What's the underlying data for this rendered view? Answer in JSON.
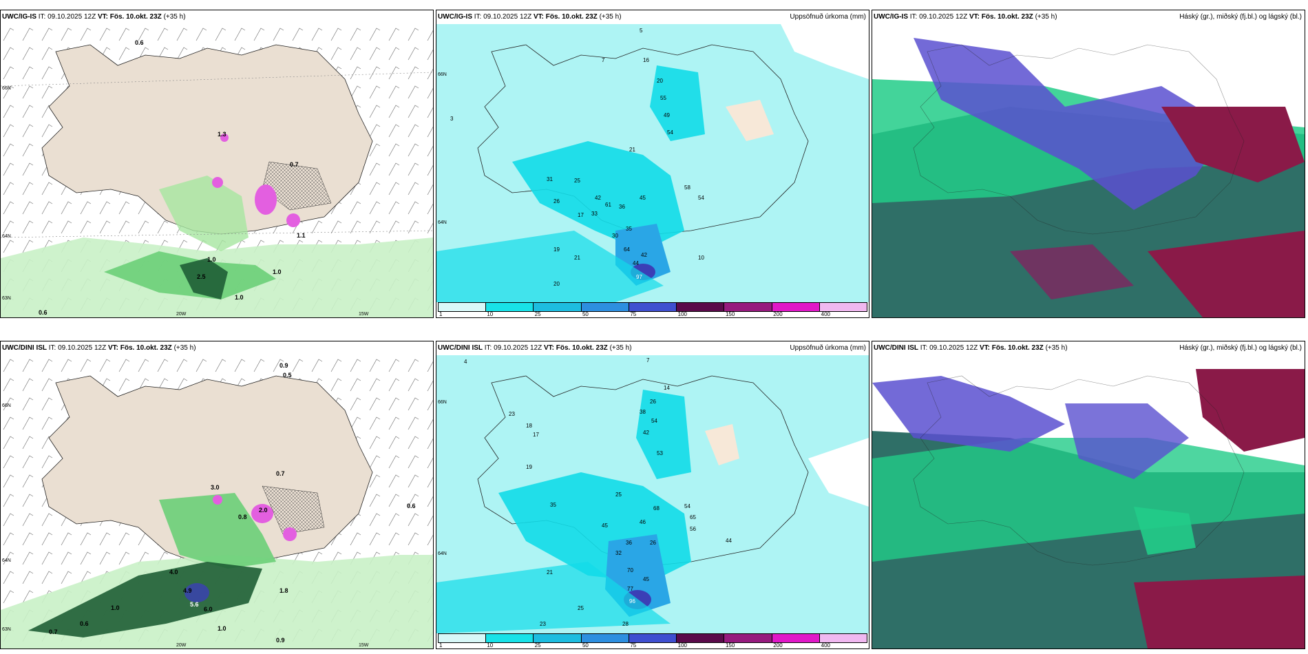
{
  "colors": {
    "land": "#eadfd2",
    "sea": "#ffffff",
    "precip_sea": "#aef4f4",
    "precip_mid": "#12dbe8",
    "precip_dark": "#2aa6e6",
    "purple": "#3b3fb6",
    "green_light": "#c9f1c7",
    "green_mid": "#6bcf78",
    "green_dark": "#1f5e35",
    "magenta": "#e35fe0",
    "cloud_teal": "#2f6f67",
    "cloud_green": "#22cc88",
    "cloud_blue": "#5a50d0",
    "cloud_maroon": "#8a1a48"
  },
  "panels": [
    {
      "model": "UWC/IG-IS",
      "it_text": "IT: 09.10.2025 12Z",
      "vt_label": "VT:",
      "vt_value": "Fös. 10.okt. 23Z",
      "lead": "(+35 h)",
      "product": "",
      "lat_labels": [
        "66N",
        "64N",
        "63N"
      ],
      "lon_labels": [
        "20W",
        "15W"
      ],
      "values": [
        "0.6",
        "0.7",
        "1.0",
        "1.0",
        "0.6",
        "1.0",
        "1.1",
        "2.5",
        "1.3"
      ]
    },
    {
      "model": "UWC/IG-IS",
      "it_text": "IT: 09.10.2025 12Z",
      "vt_label": "VT:",
      "vt_value": "Fös. 10.okt. 23Z",
      "lead": "(+35 h)",
      "product": "Uppsöfnuð úrkoma (mm)",
      "lat_labels": [
        "66N",
        "64N"
      ],
      "values": [
        "5",
        "7",
        "16",
        "20",
        "55",
        "49",
        "54",
        "21",
        "31",
        "26",
        "25",
        "42",
        "61",
        "33",
        "36",
        "45",
        "58",
        "54",
        "30",
        "35",
        "64",
        "42",
        "44",
        "97",
        "17",
        "19",
        "20",
        "21",
        "3",
        "10"
      ]
    },
    {
      "model": "UWC/IG-IS",
      "it_text": "IT: 09.10.2025 12Z",
      "vt_label": "VT:",
      "vt_value": "Fös. 10.okt. 23Z",
      "lead": "(+35 h)",
      "product": "Háský (gr.), miðský (fj.bl.) og lágský (bl.)"
    },
    {
      "model": "UWC/DINI ISL",
      "it_text": "IT: 09.10.2025 12Z",
      "vt_label": "VT:",
      "vt_value": "Fös. 10.okt. 23Z",
      "lead": "(+35 h)",
      "product": "",
      "lat_labels": [
        "66N",
        "64N",
        "63N"
      ],
      "lon_labels": [
        "20W",
        "15W"
      ],
      "values": [
        "0.9",
        "0.5",
        "3.0",
        "0.7",
        "0.8",
        "2.0",
        "0.6",
        "4.0",
        "4.9",
        "5.6",
        "6.0",
        "1.0",
        "0.7",
        "0.6",
        "1.8",
        "0.9",
        "1.0"
      ]
    },
    {
      "model": "UWC/DINI ISL",
      "it_text": "IT: 09.10.2025 12Z",
      "vt_label": "VT:",
      "vt_value": "Fös. 10.okt. 23Z",
      "lead": "(+35 h)",
      "product": "Uppsöfnuð úrkoma (mm)",
      "lat_labels": [
        "66N",
        "64N"
      ],
      "values": [
        "4",
        "7",
        "14",
        "26",
        "38",
        "54",
        "42",
        "53",
        "23",
        "18",
        "17",
        "19",
        "35",
        "25",
        "45",
        "46",
        "68",
        "54",
        "65",
        "56",
        "44",
        "36",
        "26",
        "32",
        "70",
        "45",
        "77",
        "96",
        "21",
        "25",
        "23",
        "28"
      ]
    },
    {
      "model": "UWC/DINI ISL",
      "it_text": "IT: 09.10.2025 12Z",
      "vt_label": "VT:",
      "vt_value": "Fös. 10.okt. 23Z",
      "lead": "(+35 h)",
      "product": "Háský (gr.), miðský (fj.bl.) og lágský (bl.)"
    }
  ],
  "colorbar": {
    "ticks": [
      "1",
      "10",
      "25",
      "50",
      "75",
      "100",
      "150",
      "200",
      "400"
    ],
    "colors": [
      "#d8f8f8",
      "#18e2e8",
      "#1dbde0",
      "#2d8fe0",
      "#3f4fd0",
      "#5a0a4a",
      "#961a7e",
      "#e018c8",
      "#f0b8f0"
    ]
  }
}
